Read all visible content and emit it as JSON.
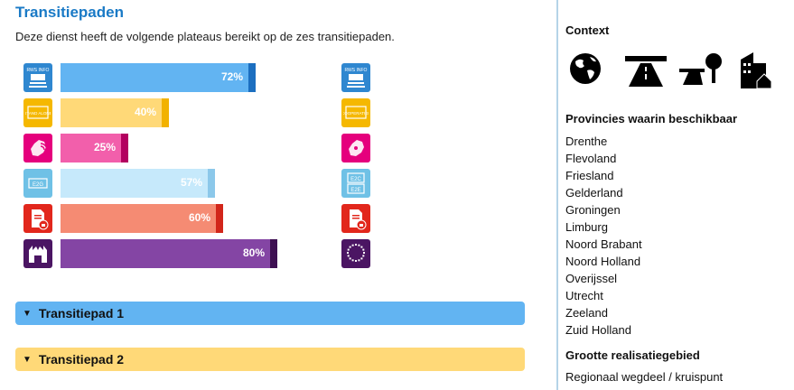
{
  "main": {
    "title": "Transitiepaden",
    "subtitle": "Deze dienst heeft de volgende plateaus bereikt op de zes transitiepaden.",
    "paths": [
      {
        "name": "rws-info",
        "icon_left": "rws-info-icon",
        "icon_right": "rws-info-icon",
        "color_left": "#2f87d0",
        "color_bar": "#62b4f2",
        "color_cap": "#1c6fc0",
        "percent": 72,
        "label": "72%",
        "icon_text_left": "RWS INFO",
        "icon_text_right": "RWS INFO"
      },
      {
        "name": "stand-alone",
        "icon_left": "stand-alone-icon",
        "icon_right": "cooperative-icon",
        "color_left": "#f5b800",
        "color_bar": "#ffd978",
        "color_cap": "#f2b200",
        "percent": 40,
        "label": "40%",
        "icon_text_left": "STAND ALONE",
        "icon_text_right": "COOPERATIEF"
      },
      {
        "name": "connected",
        "icon_left": "netherlands-signal-icon",
        "icon_right": "netherlands-map-icon",
        "color_left": "#e5007d",
        "color_bar": "#f25fab",
        "color_cap": "#b3005f",
        "percent": 25,
        "label": "25%",
        "icon_text_left": "",
        "icon_text_right": ""
      },
      {
        "name": "e2g",
        "icon_left": "e2g-icon",
        "icon_right": "e2c-e2e-icon",
        "color_left": "#6fc1e6",
        "color_bar": "#c6e9fb",
        "color_cap": "#8cc8ea",
        "percent": 57,
        "label": "57%",
        "icon_text_left": "E2G",
        "icon_text_right": "E2C E2E"
      },
      {
        "name": "privacy",
        "icon_left": "document-lock-icon",
        "icon_right": "document-lock-icon",
        "color_left": "#e2271c",
        "color_bar": "#f58b73",
        "color_cap": "#d2261a",
        "percent": 60,
        "label": "60%",
        "icon_text_left": "",
        "icon_text_right": ""
      },
      {
        "name": "organisation",
        "icon_left": "building-people-icon",
        "icon_right": "circle-network-icon",
        "color_left": "#4b1563",
        "color_bar": "#8445a4",
        "color_cap": "#3e1052",
        "percent": 80,
        "label": "80%",
        "icon_text_left": "",
        "icon_text_right": ""
      }
    ],
    "accordions": [
      {
        "label": "Transitiepad 1",
        "color": "#62b4f2"
      },
      {
        "label": "Transitiepad 2",
        "color": "#ffd978"
      }
    ]
  },
  "sidebar": {
    "context_heading": "Context",
    "context_icons": [
      "globe-icon",
      "highway-icon",
      "rural-road-icon",
      "city-icon"
    ],
    "provinces_heading": "Provincies waarin beschikbaar",
    "provinces": [
      "Drenthe",
      "Flevoland",
      "Friesland",
      "Gelderland",
      "Groningen",
      "Limburg",
      "Noord Brabant",
      "Noord Holland",
      "Overijssel",
      "Utrecht",
      "Zeeland",
      "Zuid Holland"
    ],
    "area_heading": "Grootte realisatiegebied",
    "area_value": "Regionaal wegdeel / kruispunt"
  }
}
